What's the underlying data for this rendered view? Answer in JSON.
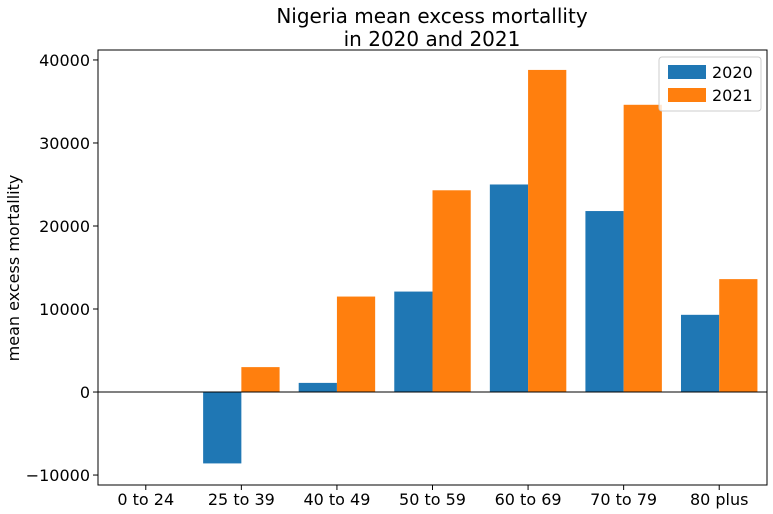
{
  "chart_data": {
    "type": "bar",
    "title_lines": [
      "Nigeria mean excess mortallity",
      "in 2020 and 2021"
    ],
    "xlabel": "",
    "ylabel": "mean excess mortallity",
    "categories": [
      "0 to 24",
      "25 to 39",
      "40 to 49",
      "50 to 59",
      "60 to 69",
      "70 to 79",
      "80 plus"
    ],
    "series": [
      {
        "name": "2020",
        "color": "#1f77b4",
        "values": [
          0,
          -8600,
          1100,
          12100,
          25000,
          21800,
          9300
        ]
      },
      {
        "name": "2021",
        "color": "#ff7f0e",
        "values": [
          0,
          3000,
          11500,
          24300,
          38800,
          34600,
          13600
        ]
      }
    ],
    "ylim": [
      -11200,
      41200
    ],
    "yticks": [
      -10000,
      0,
      10000,
      20000,
      30000,
      40000
    ],
    "ytick_labels": [
      "−10000",
      "0",
      "10000",
      "20000",
      "30000",
      "40000"
    ],
    "zero_line": true,
    "grid": false,
    "legend_position": "top-right"
  }
}
